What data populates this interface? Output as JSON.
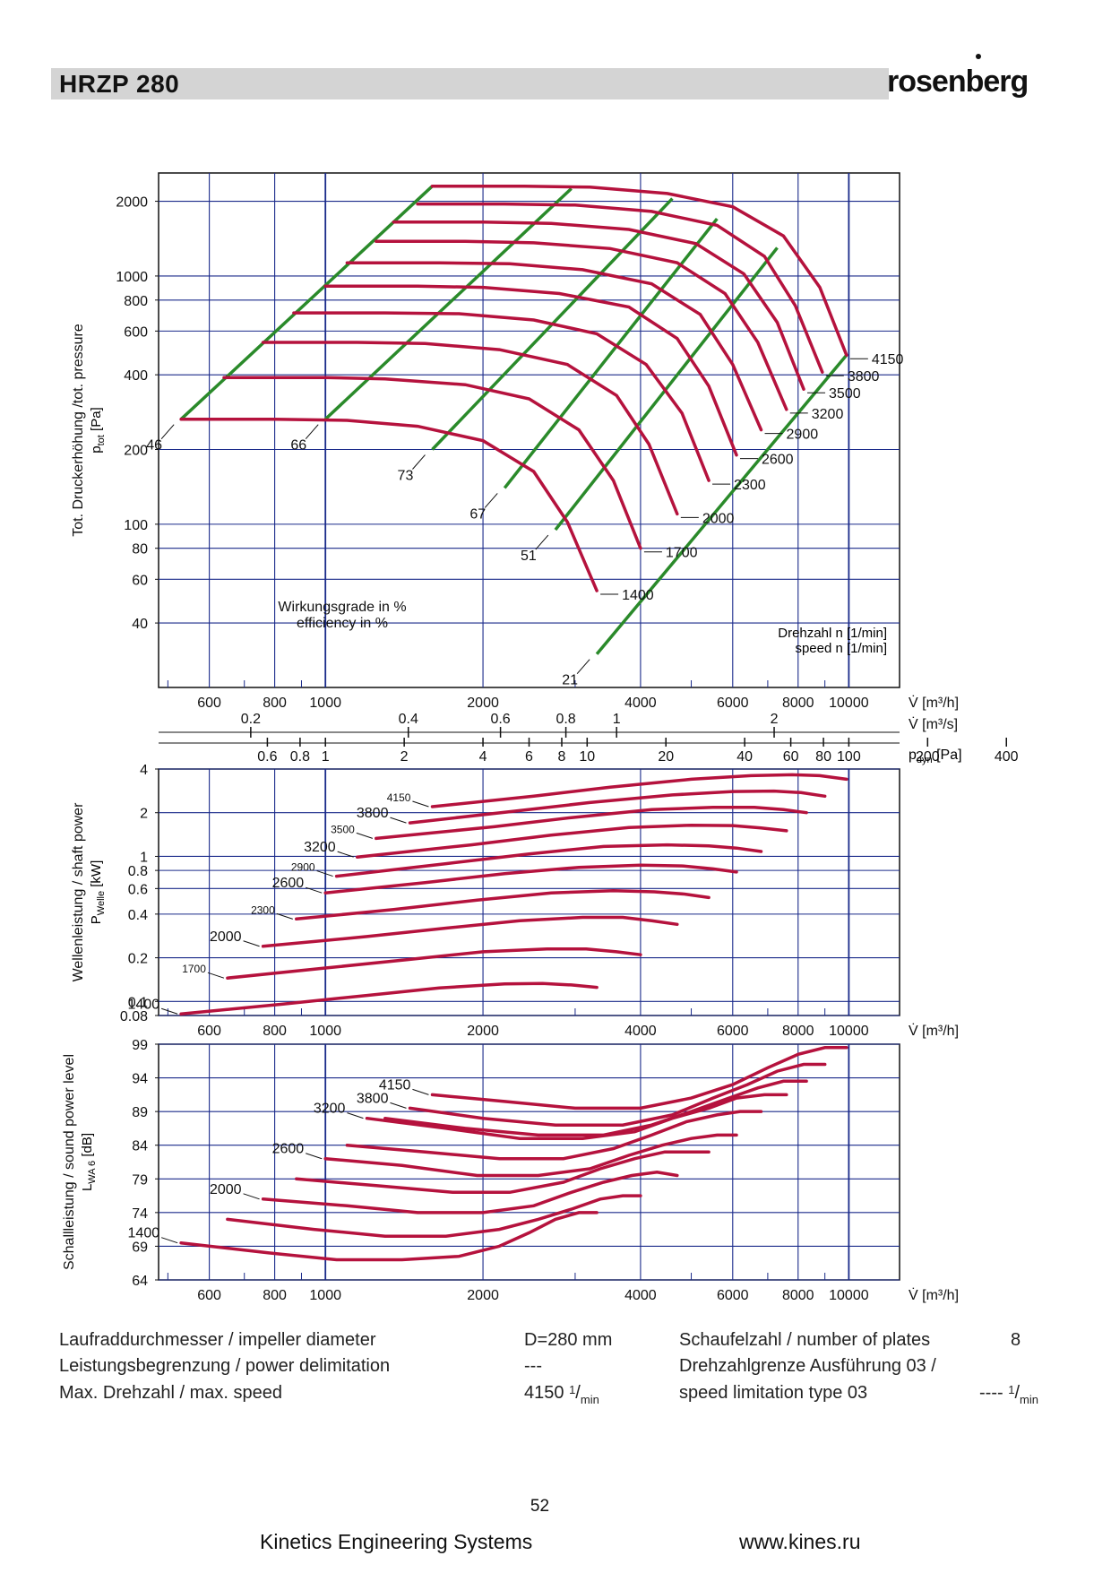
{
  "header": {
    "title": "HRZP 280",
    "brand": "rosenberg"
  },
  "chart_data": [
    {
      "type": "line",
      "name": "pressure",
      "ylabel": "Tot. Druckerhöhung /tot. pressure",
      "ylabel_sub": "p",
      "ylabel_subscript": "tot",
      "ylabel_unit": "[Pa]",
      "x_scale": "log",
      "y_scale": "log",
      "xlim": [
        480,
        12500
      ],
      "ylim": [
        22,
        2600
      ],
      "x_ticks": [
        600,
        800,
        1000,
        2000,
        4000,
        6000,
        8000,
        10000
      ],
      "x_tick_labels": [
        "600",
        "800",
        "1000",
        "2000",
        "4000",
        "6000",
        "8000",
        "10000"
      ],
      "y_ticks": [
        40,
        60,
        80,
        100,
        200,
        400,
        600,
        800,
        1000,
        2000
      ],
      "y_tick_labels": [
        "40",
        "60",
        "80",
        "100",
        "200",
        "400",
        "600",
        "800",
        "1000",
        "2000"
      ],
      "x_axis_labels": [
        "V̇ [m³/h]",
        "V̇ [m³/s]",
        "p"
      ],
      "x_axis_dyn_sub": "dyn",
      "x_axis_dyn_unit": " [Pa]",
      "m3s_ticks": [
        0.2,
        0.4,
        0.6,
        0.8,
        1,
        2
      ],
      "m3s_tick_labels": [
        "0.2",
        "0.4",
        "0.6",
        "0.8",
        "1",
        "2"
      ],
      "pdyn_ticks": [
        0.6,
        0.8,
        1,
        2,
        4,
        6,
        8,
        10,
        20,
        40,
        60,
        80,
        100,
        200,
        400
      ],
      "pdyn_tick_labels": [
        "0.6",
        "0.8",
        "1",
        "2",
        "4",
        "6",
        "8",
        "10",
        "20",
        "40",
        "60",
        "80",
        "100",
        "200",
        "400"
      ],
      "annotation_efficiency": [
        "Wirkungsgrade in %",
        "efficiency in %"
      ],
      "annotation_speed": [
        "Drehzahl n [",
        "1/",
        "min",
        "]",
        "speed n [",
        "1/",
        "min",
        "]"
      ],
      "series": [
        {
          "name": "4150",
          "x": [
            1600,
            2400,
            3200,
            4500,
            6000,
            7500,
            8800,
            9900
          ],
          "y": [
            2300,
            2300,
            2280,
            2150,
            1900,
            1450,
            900,
            480
          ]
        },
        {
          "name": "3800",
          "x": [
            1500,
            2200,
            3000,
            4200,
            5600,
            6900,
            7900,
            8900
          ],
          "y": [
            1950,
            1950,
            1930,
            1820,
            1600,
            1200,
            760,
            410
          ]
        },
        {
          "name": "3500",
          "x": [
            1350,
            2000,
            2700,
            3800,
            5100,
            6300,
            7300,
            8200
          ],
          "y": [
            1650,
            1650,
            1630,
            1540,
            1350,
            1020,
            650,
            350
          ]
        },
        {
          "name": "3200",
          "x": [
            1250,
            1850,
            2500,
            3500,
            4700,
            5800,
            6700,
            7600
          ],
          "y": [
            1380,
            1380,
            1360,
            1290,
            1130,
            850,
            540,
            290
          ]
        },
        {
          "name": "2900",
          "x": [
            1100,
            1650,
            2250,
            3100,
            4200,
            5200,
            6000,
            6800
          ],
          "y": [
            1130,
            1130,
            1120,
            1060,
            930,
            700,
            440,
            240
          ]
        },
        {
          "name": "2600",
          "x": [
            1000,
            1500,
            2000,
            2800,
            3800,
            4700,
            5400,
            6100
          ],
          "y": [
            910,
            910,
            900,
            850,
            750,
            560,
            360,
            190
          ]
        },
        {
          "name": "2300",
          "x": [
            870,
            1300,
            1800,
            2500,
            3300,
            4100,
            4800,
            5400
          ],
          "y": [
            710,
            710,
            705,
            665,
            585,
            440,
            280,
            150
          ]
        },
        {
          "name": "2000",
          "x": [
            760,
            1150,
            1550,
            2150,
            2900,
            3600,
            4150,
            4700
          ],
          "y": [
            540,
            540,
            535,
            505,
            440,
            330,
            210,
            110
          ]
        },
        {
          "name": "1700",
          "x": [
            640,
            1000,
            1300,
            1850,
            2450,
            3050,
            3550,
            4000
          ],
          "y": [
            390,
            390,
            385,
            365,
            320,
            240,
            150,
            80
          ]
        },
        {
          "name": "1400",
          "x": [
            530,
            800,
            1100,
            1500,
            2000,
            2500,
            2900,
            3300
          ],
          "y": [
            265,
            265,
            262,
            248,
            217,
            163,
            102,
            54
          ]
        }
      ],
      "efficiency_lines": [
        {
          "label": "46",
          "x": [
            530,
            1600
          ],
          "y": [
            265,
            2300
          ]
        },
        {
          "label": "66",
          "x": [
            1000,
            2950
          ],
          "y": [
            265,
            2250
          ]
        },
        {
          "label": "73",
          "x": [
            1600,
            4600
          ],
          "y": [
            200,
            2050
          ]
        },
        {
          "label": "67",
          "x": [
            2200,
            5600
          ],
          "y": [
            140,
            1700
          ]
        },
        {
          "label": "51",
          "x": [
            2750,
            7300
          ],
          "y": [
            95,
            1300
          ]
        },
        {
          "label": "21",
          "x": [
            3300,
            9900
          ],
          "y": [
            30,
            480
          ]
        }
      ],
      "speed_labels": [
        "4150",
        "3800",
        "3500",
        "3200",
        "2900",
        "2600",
        "2300",
        "2000",
        "1700",
        "1400"
      ]
    },
    {
      "type": "line",
      "name": "shaft-power",
      "ylabel": "Wellenleistung / shaft power",
      "ylabel_sub": "P",
      "ylabel_subscript": "Welle",
      "ylabel_unit": "[kW]",
      "x_scale": "log",
      "y_scale": "log",
      "xlim": [
        480,
        12500
      ],
      "ylim": [
        0.08,
        4
      ],
      "x_ticks": [
        600,
        800,
        1000,
        2000,
        4000,
        6000,
        8000,
        10000
      ],
      "x_tick_labels": [
        "600",
        "800",
        "1000",
        "2000",
        "4000",
        "6000",
        "8000",
        "10000"
      ],
      "x_axis_label": "V̇ [m³/h]",
      "y_ticks": [
        0.08,
        0.1,
        0.2,
        0.4,
        0.6,
        0.8,
        1,
        2,
        4
      ],
      "y_tick_labels": [
        "0.08",
        "0.1",
        "0.2",
        "0.4",
        "0.6",
        "0.8",
        "1",
        "2",
        "4"
      ],
      "series": [
        {
          "name": "4150",
          "x": [
            1600,
            2500,
            3500,
            5000,
            6500,
            7800,
            8800,
            9900
          ],
          "y": [
            2.2,
            2.6,
            3.0,
            3.4,
            3.6,
            3.65,
            3.6,
            3.4
          ]
        },
        {
          "name": "3800",
          "x": [
            1450,
            2300,
            3200,
            4600,
            6000,
            7200,
            8100,
            9000
          ],
          "y": [
            1.7,
            2.05,
            2.35,
            2.65,
            2.8,
            2.82,
            2.75,
            2.6
          ]
        },
        {
          "name": "3500",
          "x": [
            1250,
            2100,
            2950,
            4200,
            5500,
            6600,
            7500,
            8300
          ],
          "y": [
            1.33,
            1.6,
            1.85,
            2.1,
            2.18,
            2.18,
            2.1,
            2.0
          ]
        },
        {
          "name": "3200",
          "x": [
            1150,
            1900,
            2700,
            3800,
            5000,
            6000,
            6800,
            7600
          ],
          "y": [
            0.99,
            1.2,
            1.4,
            1.58,
            1.64,
            1.63,
            1.57,
            1.5
          ]
        },
        {
          "name": "2900",
          "x": [
            1050,
            1700,
            2450,
            3400,
            4500,
            5400,
            6100,
            6800
          ],
          "y": [
            0.73,
            0.89,
            1.04,
            1.17,
            1.2,
            1.18,
            1.14,
            1.08
          ]
        },
        {
          "name": "2600",
          "x": [
            1000,
            1550,
            2200,
            3050,
            4000,
            4800,
            5500,
            6100
          ],
          "y": [
            0.56,
            0.66,
            0.76,
            0.84,
            0.87,
            0.86,
            0.82,
            0.78
          ]
        },
        {
          "name": "2300",
          "x": [
            880,
            1350,
            1950,
            2700,
            3550,
            4250,
            4850,
            5400
          ],
          "y": [
            0.37,
            0.43,
            0.5,
            0.56,
            0.58,
            0.57,
            0.55,
            0.52
          ]
        },
        {
          "name": "2000",
          "x": [
            760,
            1200,
            1700,
            2350,
            3100,
            3700,
            4200,
            4700
          ],
          "y": [
            0.24,
            0.28,
            0.32,
            0.36,
            0.38,
            0.38,
            0.36,
            0.34
          ]
        },
        {
          "name": "1700",
          "x": [
            650,
            1000,
            1450,
            2000,
            2650,
            3150,
            3600,
            4000
          ],
          "y": [
            0.145,
            0.17,
            0.195,
            0.22,
            0.23,
            0.23,
            0.22,
            0.21
          ]
        },
        {
          "name": "1400",
          "x": [
            530,
            830,
            1200,
            1650,
            2200,
            2600,
            2950,
            3300
          ],
          "y": [
            0.082,
            0.096,
            0.11,
            0.124,
            0.132,
            0.133,
            0.13,
            0.125
          ]
        }
      ],
      "speed_labels": [
        "4150",
        "3800",
        "3500",
        "3200",
        "2900",
        "2600",
        "2300",
        "2000",
        "1700",
        "1400"
      ]
    },
    {
      "type": "line",
      "name": "sound-power",
      "ylabel": "Schallleistung / sound power level",
      "ylabel_sub": "L",
      "ylabel_subscript": "WA 6",
      "ylabel_unit": "[dB]",
      "x_scale": "log",
      "y_scale": "linear",
      "xlim": [
        480,
        12500
      ],
      "ylim": [
        64,
        99
      ],
      "x_ticks": [
        600,
        800,
        1000,
        2000,
        4000,
        6000,
        8000,
        10000
      ],
      "x_tick_labels": [
        "600",
        "800",
        "1000",
        "2000",
        "4000",
        "6000",
        "8000",
        "10000"
      ],
      "x_axis_label": "V̇ [m³/h]",
      "y_ticks": [
        64,
        69,
        74,
        79,
        84,
        89,
        94,
        99
      ],
      "y_tick_labels": [
        "64",
        "69",
        "74",
        "79",
        "84",
        "89",
        "94",
        "99"
      ],
      "series": [
        {
          "name": "4150",
          "x": [
            1600,
            2200,
            3000,
            4000,
            5000,
            6000,
            7000,
            8000,
            9000,
            9900
          ],
          "y": [
            91.5,
            90.5,
            89.5,
            89.5,
            91,
            93,
            95.5,
            97.5,
            98.5,
            98.5
          ]
        },
        {
          "name": "3800",
          "x": [
            1450,
            2000,
            2750,
            3700,
            4600,
            5500,
            6400,
            7300,
            8200,
            9000
          ],
          "y": [
            89.5,
            88,
            87,
            87,
            88.5,
            91,
            93,
            95,
            96,
            96
          ]
        },
        {
          "name": "3500",
          "x": [
            1300,
            1850,
            2550,
            3400,
            4200,
            5000,
            5900,
            6700,
            7500,
            8300
          ],
          "y": [
            88,
            86.5,
            85.5,
            85.5,
            87,
            89,
            91,
            92.5,
            93.5,
            93.5
          ]
        },
        {
          "name": "3200",
          "x": [
            1200,
            1700,
            2350,
            3100,
            3900,
            4600,
            5400,
            6100,
            6900,
            7600
          ],
          "y": [
            88,
            86.5,
            85,
            85,
            86,
            88,
            89.5,
            91,
            91.5,
            91.5
          ]
        },
        {
          "name": "2900",
          "x": [
            1100,
            1550,
            2150,
            2850,
            3550,
            4200,
            4900,
            5600,
            6200,
            6800
          ],
          "y": [
            84,
            83,
            82,
            82,
            83.5,
            85.5,
            87.5,
            88.5,
            89,
            89
          ]
        },
        {
          "name": "2600",
          "x": [
            1000,
            1400,
            1950,
            2550,
            3200,
            3800,
            4400,
            5000,
            5600,
            6100
          ],
          "y": [
            82,
            81,
            79.5,
            79.5,
            80.5,
            82.5,
            84,
            85,
            85.5,
            85.5
          ]
        },
        {
          "name": "2300",
          "x": [
            880,
            1250,
            1750,
            2250,
            2850,
            3350,
            3900,
            4450,
            4950,
            5400
          ],
          "y": [
            79,
            78,
            77,
            77,
            78.5,
            80.5,
            82,
            83,
            83,
            83
          ]
        },
        {
          "name": "2000",
          "x": [
            760,
            1100,
            1500,
            2000,
            2500,
            2950,
            3400,
            3850,
            4300,
            4700
          ],
          "y": [
            76,
            75,
            74,
            74,
            75,
            77,
            78.5,
            79.5,
            80,
            79.5
          ]
        },
        {
          "name": "1700",
          "x": [
            650,
            950,
            1300,
            1700,
            2150,
            2550,
            2950,
            3350,
            3700,
            4000
          ],
          "y": [
            73,
            71.5,
            70.5,
            70.5,
            71.5,
            73,
            74.5,
            76,
            76.5,
            76.5
          ]
        },
        {
          "name": "1400",
          "x": [
            530,
            780,
            1050,
            1400,
            1800,
            2150,
            2450,
            2750,
            3050,
            3300
          ],
          "y": [
            69.5,
            68,
            67,
            67,
            67.5,
            69,
            71,
            73,
            74,
            74
          ]
        }
      ],
      "speed_labels": [
        "4150",
        "3800",
        "3200",
        "2600",
        "2000",
        "1400"
      ]
    }
  ],
  "specs": {
    "impeller_label": "Laufraddurchmesser / impeller diameter",
    "impeller_value": "D=280 mm",
    "power_label": "Leistungsbegrenzung / power delimitation",
    "power_value": "---",
    "speed_label": "Max. Drehzahl / max. speed",
    "speed_value": "4150",
    "speed_unit_num": "1",
    "speed_unit_den": "min",
    "plates_label": "Schaufelzahl / number of plates",
    "plates_value": "8",
    "limit_label_1": "Drehzahlgrenze Ausführung 03 /",
    "limit_label_2": "speed limitation type 03",
    "limit_value": "----",
    "limit_unit_num": "1",
    "limit_unit_den": "min"
  },
  "footer": {
    "page_number": "52",
    "company": "Kinetics Engineering Systems",
    "website": "www.kines.ru"
  },
  "colors": {
    "curve": "#b5123d",
    "efficiency": "#2a8a2a",
    "grid": "#1a2a8a",
    "header_bar": "#d4d4d4"
  }
}
